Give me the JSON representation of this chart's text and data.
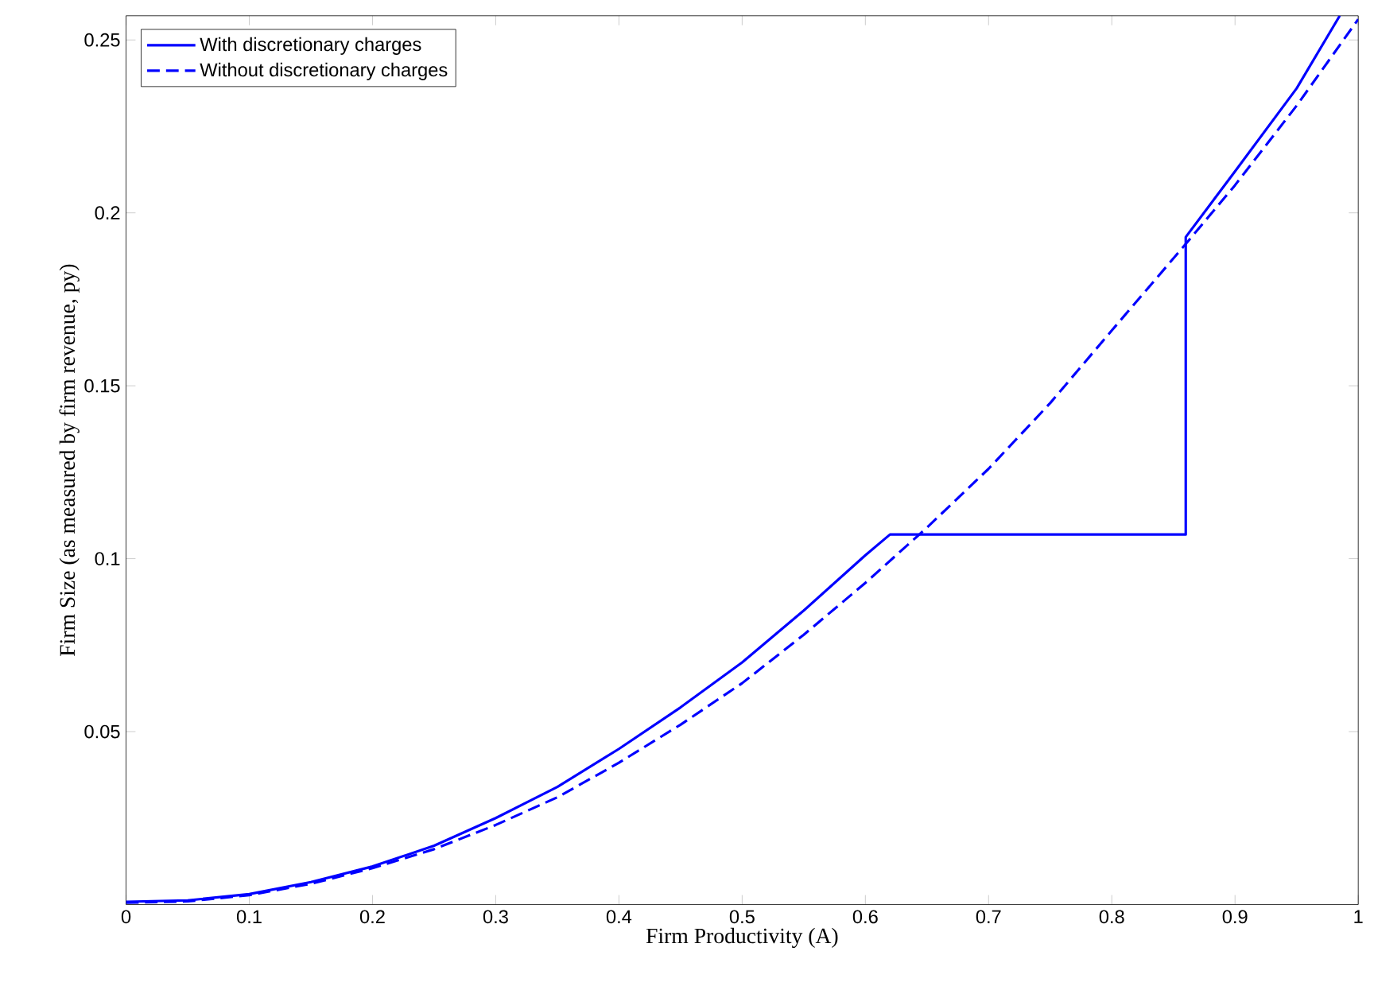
{
  "chart_data": {
    "type": "line",
    "xlabel": "Firm Productivity (A)",
    "ylabel": "Firm Size (as measured by firm revenue, py)",
    "xlim": [
      0,
      1
    ],
    "ylim": [
      0,
      0.257
    ],
    "xticks": [
      0,
      0.1,
      0.2,
      0.3,
      0.4,
      0.5,
      0.6,
      0.7,
      0.8,
      0.9,
      1
    ],
    "yticks": [
      0.05,
      0.1,
      0.15,
      0.2,
      0.25
    ],
    "grid": false,
    "legend": "top left",
    "series": [
      {
        "name": "With discretionary charges",
        "color": "#0000ff",
        "line_style": "solid",
        "x": [
          0,
          0.05,
          0.1,
          0.15,
          0.2,
          0.25,
          0.3,
          0.35,
          0.4,
          0.45,
          0.5,
          0.55,
          0.6,
          0.62,
          0.86,
          0.86,
          0.86,
          0.86,
          0.9,
          0.95,
          0.985
        ],
        "values": [
          0.0008,
          0.0012,
          0.003,
          0.0065,
          0.011,
          0.017,
          0.025,
          0.034,
          0.045,
          0.057,
          0.07,
          0.085,
          0.101,
          0.107,
          0.107,
          0.193,
          0.15,
          0.193,
          0.212,
          0.236,
          0.257
        ]
      },
      {
        "name": "Without discretionary charges",
        "color": "#0000ff",
        "line_style": "dashed",
        "x": [
          0,
          0.05,
          0.1,
          0.15,
          0.2,
          0.25,
          0.3,
          0.35,
          0.4,
          0.45,
          0.5,
          0.55,
          0.6,
          0.65,
          0.7,
          0.75,
          0.8,
          0.86,
          0.9,
          0.95,
          1
        ],
        "values": [
          0.0005,
          0.0009,
          0.0027,
          0.006,
          0.0105,
          0.016,
          0.023,
          0.031,
          0.041,
          0.052,
          0.064,
          0.078,
          0.093,
          0.109,
          0.126,
          0.145,
          0.166,
          0.191,
          0.208,
          0.231,
          0.256
        ]
      }
    ]
  }
}
